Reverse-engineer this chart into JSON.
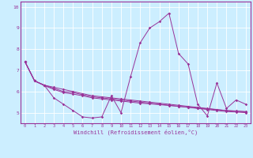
{
  "title": "",
  "xlabel": "Windchill (Refroidissement éolien,°C)",
  "background_color": "#cceeff",
  "line_color": "#993399",
  "grid_color": "#ffffff",
  "x_values": [
    0,
    1,
    2,
    3,
    4,
    5,
    6,
    7,
    8,
    9,
    10,
    11,
    12,
    13,
    14,
    15,
    16,
    17,
    18,
    19,
    20,
    21,
    22,
    23
  ],
  "series1": [
    7.4,
    6.5,
    6.3,
    5.7,
    5.4,
    5.1,
    4.8,
    4.75,
    4.8,
    5.8,
    5.0,
    6.7,
    8.3,
    9.0,
    9.3,
    9.7,
    7.8,
    7.3,
    5.4,
    4.85,
    6.4,
    5.2,
    5.6,
    5.4
  ],
  "series2": [
    7.4,
    6.5,
    6.3,
    6.2,
    6.1,
    6.0,
    5.9,
    5.8,
    5.75,
    5.7,
    5.65,
    5.6,
    5.55,
    5.5,
    5.45,
    5.4,
    5.35,
    5.3,
    5.25,
    5.2,
    5.15,
    5.1,
    5.08,
    5.05
  ],
  "series3": [
    7.4,
    6.5,
    6.3,
    6.15,
    6.0,
    5.95,
    5.85,
    5.75,
    5.7,
    5.65,
    5.6,
    5.55,
    5.5,
    5.45,
    5.4,
    5.35,
    5.3,
    5.25,
    5.2,
    5.15,
    5.1,
    5.05,
    5.03,
    5.0
  ],
  "series4": [
    7.4,
    6.5,
    6.28,
    6.1,
    5.95,
    5.88,
    5.8,
    5.7,
    5.65,
    5.6,
    5.55,
    5.5,
    5.45,
    5.42,
    5.38,
    5.34,
    5.3,
    5.26,
    5.22,
    5.18,
    5.14,
    5.1,
    5.07,
    5.04
  ],
  "ylim": [
    4.5,
    10.25
  ],
  "xlim": [
    -0.5,
    23.5
  ],
  "yticks": [
    5,
    6,
    7,
    8,
    9,
    10
  ]
}
